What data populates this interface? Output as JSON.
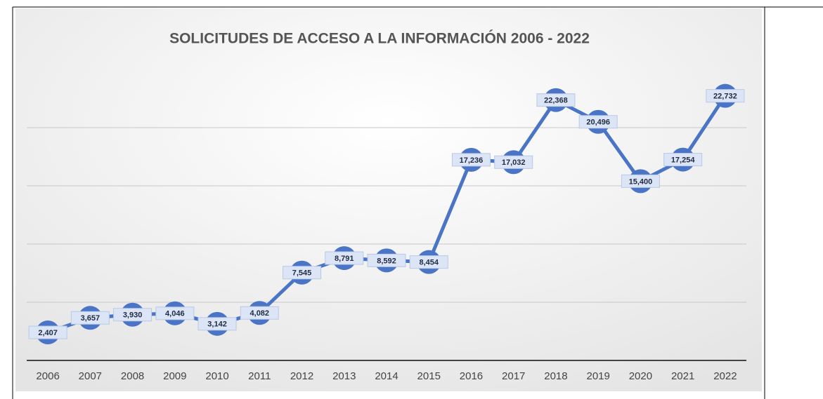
{
  "chart_data": {
    "type": "line",
    "title": "SOLICITUDES DE ACCESO A LA INFORMACIÓN 2006 - 2022",
    "categories": [
      "2006",
      "2007",
      "2008",
      "2009",
      "2010",
      "2011",
      "2012",
      "2013",
      "2014",
      "2015",
      "2016",
      "2017",
      "2018",
      "2019",
      "2020",
      "2021",
      "2022"
    ],
    "series": [
      {
        "name": "Solicitudes",
        "color": "#4a74c6",
        "values": [
          2407,
          3657,
          3930,
          4046,
          3142,
          4082,
          7545,
          8791,
          8592,
          8454,
          17236,
          17032,
          22368,
          20496,
          15400,
          17254,
          22732
        ],
        "value_labels": [
          "2,407",
          "3,657",
          "3,930",
          "4,046",
          "3,142",
          "4,082",
          "7,545",
          "8,791",
          "8,592",
          "8,454",
          "17,236",
          "17,032",
          "22,368",
          "20,496",
          "15,400",
          "17,254",
          "22,732"
        ]
      }
    ],
    "ylim": [
      0,
      25000
    ],
    "yticks": [
      0,
      5000,
      10000,
      15000,
      20000
    ],
    "grid": true
  }
}
